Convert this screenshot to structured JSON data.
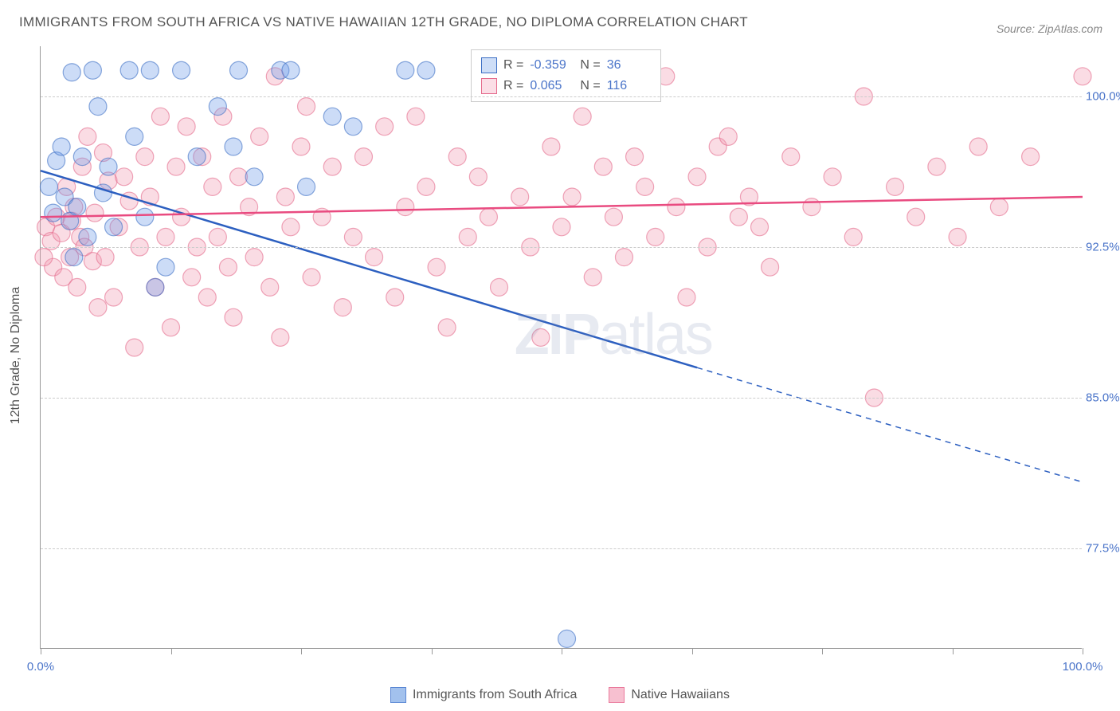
{
  "title": "IMMIGRANTS FROM SOUTH AFRICA VS NATIVE HAWAIIAN 12TH GRADE, NO DIPLOMA CORRELATION CHART",
  "source": "Source: ZipAtlas.com",
  "ylabel": "12th Grade, No Diploma",
  "watermark_a": "ZIP",
  "watermark_b": "atlas",
  "chart": {
    "type": "scatter",
    "xlim": [
      0,
      100
    ],
    "ylim": [
      72.5,
      102.5
    ],
    "yticks": [
      77.5,
      85.0,
      92.5,
      100.0
    ],
    "ytick_labels": [
      "77.5%",
      "85.0%",
      "92.5%",
      "100.0%"
    ],
    "xticks": [
      0,
      12.5,
      25,
      37.5,
      50,
      62.5,
      75,
      87.5,
      100
    ],
    "xtick_labels": {
      "0": "0.0%",
      "100": "100.0%"
    },
    "background_color": "#ffffff",
    "grid_color": "#cccccc",
    "axis_color": "#999999",
    "marker_radius": 11,
    "marker_opacity": 0.35,
    "series": [
      {
        "name": "Immigrants from South Africa",
        "color_fill": "#6d9be8",
        "color_stroke": "#3d6fc4",
        "r_label": "R =",
        "r_value": "-0.359",
        "n_label": "N =",
        "n_value": "36",
        "trend": {
          "x1": 0,
          "y1": 96.3,
          "x2": 63,
          "y2": 86.5,
          "solid_until_x": 63,
          "dash_to_x": 100,
          "dash_to_y": 80.8,
          "color": "#2c5fc0",
          "width": 2.5
        },
        "points": [
          [
            0.8,
            95.5
          ],
          [
            1.2,
            94.2
          ],
          [
            1.5,
            96.8
          ],
          [
            2.0,
            97.5
          ],
          [
            2.3,
            95.0
          ],
          [
            2.8,
            93.8
          ],
          [
            3.0,
            101.2
          ],
          [
            3.2,
            92.0
          ],
          [
            3.5,
            94.5
          ],
          [
            4.0,
            97.0
          ],
          [
            4.5,
            93.0
          ],
          [
            5.0,
            101.3
          ],
          [
            5.5,
            99.5
          ],
          [
            6.0,
            95.2
          ],
          [
            6.5,
            96.5
          ],
          [
            7.0,
            93.5
          ],
          [
            8.5,
            101.3
          ],
          [
            9.0,
            98.0
          ],
          [
            10.0,
            94.0
          ],
          [
            10.5,
            101.3
          ],
          [
            11.0,
            90.5
          ],
          [
            12.0,
            91.5
          ],
          [
            13.5,
            101.3
          ],
          [
            15.0,
            97.0
          ],
          [
            17.0,
            99.5
          ],
          [
            18.5,
            97.5
          ],
          [
            19.0,
            101.3
          ],
          [
            20.5,
            96.0
          ],
          [
            23.0,
            101.3
          ],
          [
            24.0,
            101.3
          ],
          [
            25.5,
            95.5
          ],
          [
            28.0,
            99.0
          ],
          [
            30.0,
            98.5
          ],
          [
            35.0,
            101.3
          ],
          [
            37.0,
            101.3
          ],
          [
            50.5,
            73.0
          ]
        ]
      },
      {
        "name": "Native Hawaiians",
        "color_fill": "#f29bb3",
        "color_stroke": "#e56a8c",
        "r_label": "R =",
        "r_value": "0.065",
        "n_label": "N =",
        "n_value": "116",
        "trend": {
          "x1": 0,
          "y1": 94.0,
          "x2": 100,
          "y2": 95.0,
          "solid_until_x": 100,
          "color": "#e94b80",
          "width": 2.5
        },
        "points": [
          [
            0.5,
            93.5
          ],
          [
            1.0,
            92.8
          ],
          [
            1.2,
            91.5
          ],
          [
            1.5,
            94.0
          ],
          [
            2.0,
            93.2
          ],
          [
            2.2,
            91.0
          ],
          [
            2.5,
            95.5
          ],
          [
            2.8,
            92.0
          ],
          [
            3.0,
            93.8
          ],
          [
            3.2,
            94.5
          ],
          [
            3.5,
            90.5
          ],
          [
            3.8,
            93.0
          ],
          [
            4.0,
            96.5
          ],
          [
            4.2,
            92.5
          ],
          [
            4.5,
            98.0
          ],
          [
            5.0,
            91.8
          ],
          [
            5.2,
            94.2
          ],
          [
            5.5,
            89.5
          ],
          [
            6.0,
            97.2
          ],
          [
            6.2,
            92.0
          ],
          [
            6.5,
            95.8
          ],
          [
            7.0,
            90.0
          ],
          [
            7.5,
            93.5
          ],
          [
            8.0,
            96.0
          ],
          [
            8.5,
            94.8
          ],
          [
            9.0,
            87.5
          ],
          [
            9.5,
            92.5
          ],
          [
            10.0,
            97.0
          ],
          [
            10.5,
            95.0
          ],
          [
            11.0,
            90.5
          ],
          [
            11.5,
            99.0
          ],
          [
            12.0,
            93.0
          ],
          [
            12.5,
            88.5
          ],
          [
            13.0,
            96.5
          ],
          [
            13.5,
            94.0
          ],
          [
            14.0,
            98.5
          ],
          [
            14.5,
            91.0
          ],
          [
            15.0,
            92.5
          ],
          [
            15.5,
            97.0
          ],
          [
            16.0,
            90.0
          ],
          [
            16.5,
            95.5
          ],
          [
            17.0,
            93.0
          ],
          [
            17.5,
            99.0
          ],
          [
            18.0,
            91.5
          ],
          [
            18.5,
            89.0
          ],
          [
            19.0,
            96.0
          ],
          [
            20.0,
            94.5
          ],
          [
            20.5,
            92.0
          ],
          [
            21.0,
            98.0
          ],
          [
            22.0,
            90.5
          ],
          [
            22.5,
            101.0
          ],
          [
            23.0,
            88.0
          ],
          [
            23.5,
            95.0
          ],
          [
            24.0,
            93.5
          ],
          [
            25.0,
            97.5
          ],
          [
            25.5,
            99.5
          ],
          [
            26.0,
            91.0
          ],
          [
            27.0,
            94.0
          ],
          [
            28.0,
            96.5
          ],
          [
            29.0,
            89.5
          ],
          [
            30.0,
            93.0
          ],
          [
            31.0,
            97.0
          ],
          [
            32.0,
            92.0
          ],
          [
            33.0,
            98.5
          ],
          [
            34.0,
            90.0
          ],
          [
            35.0,
            94.5
          ],
          [
            36.0,
            99.0
          ],
          [
            37.0,
            95.5
          ],
          [
            38.0,
            91.5
          ],
          [
            39.0,
            88.5
          ],
          [
            40.0,
            97.0
          ],
          [
            41.0,
            93.0
          ],
          [
            42.0,
            96.0
          ],
          [
            43.0,
            94.0
          ],
          [
            44.0,
            90.5
          ],
          [
            45.0,
            100.5
          ],
          [
            46.0,
            95.0
          ],
          [
            47.0,
            92.5
          ],
          [
            48.0,
            88.0
          ],
          [
            49.0,
            97.5
          ],
          [
            50.0,
            93.5
          ],
          [
            51.0,
            95.0
          ],
          [
            52.0,
            99.0
          ],
          [
            53.0,
            91.0
          ],
          [
            54.0,
            96.5
          ],
          [
            55.0,
            94.0
          ],
          [
            56.0,
            92.0
          ],
          [
            57.0,
            97.0
          ],
          [
            58.0,
            95.5
          ],
          [
            59.0,
            93.0
          ],
          [
            60.0,
            101.0
          ],
          [
            61.0,
            94.5
          ],
          [
            62.0,
            90.0
          ],
          [
            63.0,
            96.0
          ],
          [
            64.0,
            92.5
          ],
          [
            65.0,
            97.5
          ],
          [
            66.0,
            98.0
          ],
          [
            67.0,
            94.0
          ],
          [
            68.0,
            95.0
          ],
          [
            69.0,
            93.5
          ],
          [
            70.0,
            91.5
          ],
          [
            72.0,
            97.0
          ],
          [
            74.0,
            94.5
          ],
          [
            76.0,
            96.0
          ],
          [
            78.0,
            93.0
          ],
          [
            79.0,
            100.0
          ],
          [
            80.0,
            85.0
          ],
          [
            82.0,
            95.5
          ],
          [
            84.0,
            94.0
          ],
          [
            86.0,
            96.5
          ],
          [
            88.0,
            93.0
          ],
          [
            90.0,
            97.5
          ],
          [
            92.0,
            94.5
          ],
          [
            95.0,
            97.0
          ],
          [
            100.0,
            101.0
          ],
          [
            0.3,
            92.0
          ]
        ]
      }
    ]
  },
  "bottom_legend": [
    {
      "label": "Immigrants from South Africa",
      "fill": "#a2c1ed",
      "stroke": "#5a87d4"
    },
    {
      "label": "Native Hawaiians",
      "fill": "#f7c0d0",
      "stroke": "#ea7a9c"
    }
  ]
}
